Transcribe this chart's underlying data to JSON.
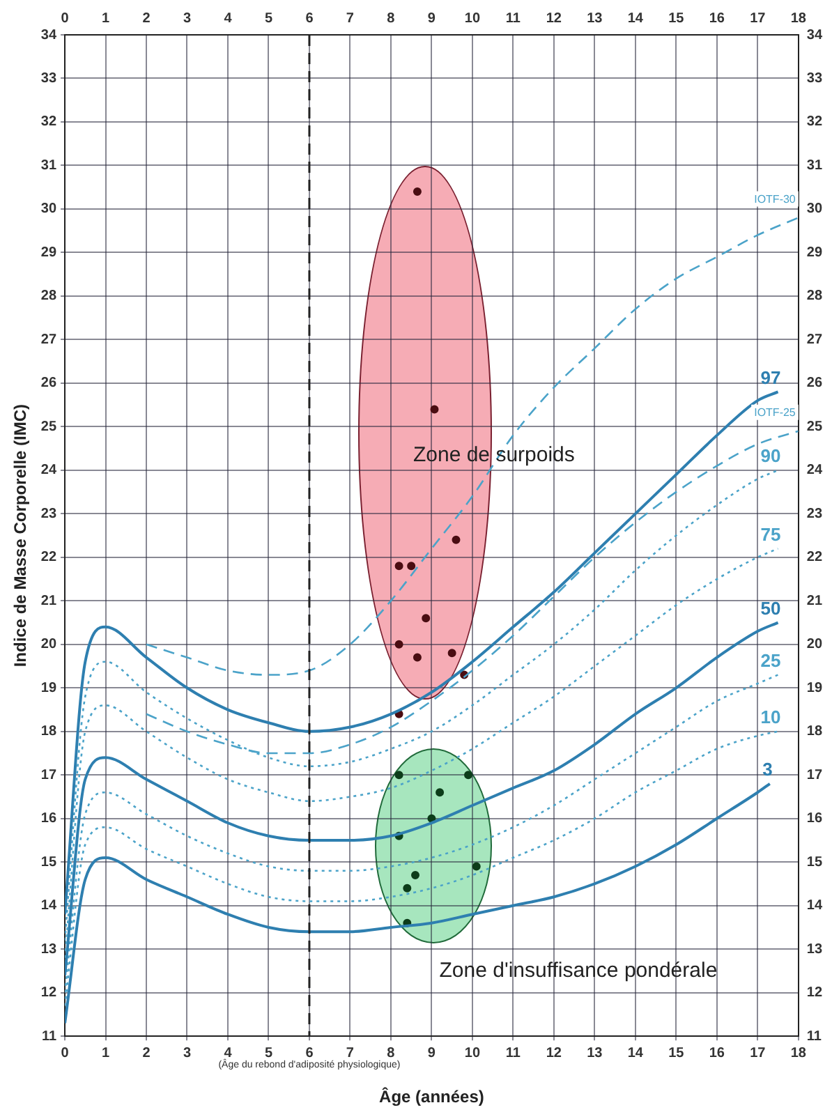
{
  "chart_data": {
    "type": "line",
    "xlabel": "Âge (années)",
    "ylabel": "Indice de Masse Corporelle (IMC)",
    "xlim": [
      0,
      18
    ],
    "xticks": [
      0,
      1,
      2,
      3,
      4,
      5,
      6,
      7,
      8,
      9,
      10,
      11,
      12,
      13,
      14,
      15,
      16,
      17,
      18
    ],
    "x2lim": [
      0,
      18
    ],
    "x2ticks": [
      0,
      1,
      2,
      3,
      4,
      5,
      6,
      7,
      8,
      9,
      10,
      11,
      12,
      13,
      14,
      15,
      16,
      17,
      18
    ],
    "ylim": [
      11,
      34
    ],
    "yticks": [
      11,
      12,
      13,
      14,
      15,
      16,
      17,
      18,
      19,
      20,
      21,
      22,
      23,
      24,
      25,
      26,
      27,
      28,
      29,
      30,
      31,
      32,
      33,
      34
    ],
    "y2lim": [
      11,
      34
    ],
    "y2ticks": [
      11,
      12,
      13,
      14,
      15,
      16,
      17,
      18,
      19,
      20,
      21,
      22,
      23,
      24,
      25,
      26,
      27,
      28,
      29,
      30,
      31,
      32,
      33,
      34
    ],
    "grid": true,
    "legend": false,
    "marker": "none",
    "series": [
      {
        "name": "97",
        "color": "#2e7fb0",
        "line_style": "solid",
        "x": [
          0,
          0.5,
          1,
          2,
          3,
          4,
          5,
          6,
          7,
          8,
          9,
          10,
          11,
          12,
          13,
          14,
          15,
          16,
          17,
          17.5
        ],
        "values": [
          13.8,
          19.6,
          20.4,
          19.7,
          19.0,
          18.5,
          18.2,
          18.0,
          18.1,
          18.4,
          18.9,
          19.6,
          20.4,
          21.2,
          22.1,
          23.0,
          23.9,
          24.8,
          25.6,
          25.8
        ]
      },
      {
        "name": "90",
        "color": "#4ba3c9",
        "line_style": "dotted",
        "x": [
          0,
          0.5,
          1,
          2,
          3,
          4,
          5,
          6,
          7,
          8,
          9,
          10,
          11,
          12,
          13,
          14,
          15,
          16,
          17,
          17.5
        ],
        "values": [
          13.2,
          18.8,
          19.6,
          18.9,
          18.3,
          17.8,
          17.4,
          17.2,
          17.3,
          17.6,
          18.0,
          18.6,
          19.3,
          20.0,
          20.8,
          21.7,
          22.5,
          23.2,
          23.8,
          24.0
        ]
      },
      {
        "name": "75",
        "color": "#4ba3c9",
        "line_style": "dotted",
        "x": [
          0,
          0.5,
          1,
          2,
          3,
          4,
          5,
          6,
          7,
          8,
          9,
          10,
          11,
          12,
          13,
          14,
          15,
          16,
          17,
          17.5
        ],
        "values": [
          12.8,
          18.0,
          18.6,
          18.0,
          17.4,
          16.9,
          16.6,
          16.4,
          16.5,
          16.7,
          17.1,
          17.6,
          18.2,
          18.8,
          19.5,
          20.2,
          20.9,
          21.5,
          22.0,
          22.2
        ]
      },
      {
        "name": "50",
        "color": "#2e7fb0",
        "line_style": "solid",
        "x": [
          0,
          0.5,
          1,
          2,
          3,
          4,
          5,
          6,
          7,
          8,
          9,
          10,
          11,
          12,
          13,
          14,
          15,
          16,
          17,
          17.5
        ],
        "values": [
          12.4,
          16.9,
          17.4,
          16.9,
          16.4,
          15.9,
          15.6,
          15.5,
          15.5,
          15.6,
          15.9,
          16.3,
          16.7,
          17.1,
          17.7,
          18.4,
          19.0,
          19.7,
          20.3,
          20.5
        ]
      },
      {
        "name": "25",
        "color": "#4ba3c9",
        "line_style": "dotted",
        "x": [
          0,
          0.5,
          1,
          2,
          3,
          4,
          5,
          6,
          7,
          8,
          9,
          10,
          11,
          12,
          13,
          14,
          15,
          16,
          17,
          17.5
        ],
        "values": [
          12.0,
          16.1,
          16.6,
          16.1,
          15.6,
          15.2,
          14.9,
          14.8,
          14.8,
          14.9,
          15.1,
          15.4,
          15.8,
          16.3,
          16.9,
          17.5,
          18.1,
          18.7,
          19.1,
          19.3
        ]
      },
      {
        "name": "10",
        "color": "#4ba3c9",
        "line_style": "dotted",
        "x": [
          0,
          0.5,
          1,
          2,
          3,
          4,
          5,
          6,
          7,
          8,
          9,
          10,
          11,
          12,
          13,
          14,
          15,
          16,
          17,
          17.5
        ],
        "values": [
          11.7,
          15.4,
          15.8,
          15.3,
          14.9,
          14.5,
          14.2,
          14.1,
          14.1,
          14.2,
          14.4,
          14.7,
          15.1,
          15.5,
          16.0,
          16.6,
          17.1,
          17.6,
          17.9,
          18.0
        ]
      },
      {
        "name": "3",
        "color": "#2e7fb0",
        "line_style": "solid",
        "x": [
          0,
          0.5,
          1,
          2,
          3,
          4,
          5,
          6,
          7,
          8,
          9,
          10,
          11,
          12,
          13,
          14,
          15,
          16,
          17,
          17.3
        ],
        "values": [
          11.3,
          14.6,
          15.1,
          14.6,
          14.2,
          13.8,
          13.5,
          13.4,
          13.4,
          13.5,
          13.6,
          13.8,
          14.0,
          14.2,
          14.5,
          14.9,
          15.4,
          16.0,
          16.6,
          16.8
        ]
      },
      {
        "name": "IOTF-30",
        "color": "#4ba3c9",
        "line_style": "dashed",
        "x": [
          2,
          3,
          4,
          5,
          6,
          7,
          8,
          9,
          10,
          11,
          12,
          13,
          14,
          15,
          16,
          17,
          18
        ],
        "values": [
          20.0,
          19.7,
          19.4,
          19.3,
          19.4,
          20.0,
          21.0,
          22.2,
          23.4,
          24.8,
          25.9,
          26.8,
          27.7,
          28.4,
          28.9,
          29.4,
          29.8
        ]
      },
      {
        "name": "IOTF-25",
        "color": "#4ba3c9",
        "line_style": "dashed",
        "x": [
          2,
          3,
          4,
          5,
          6,
          7,
          8,
          9,
          10,
          11,
          12,
          13,
          14,
          15,
          16,
          17,
          18
        ],
        "values": [
          18.4,
          18.0,
          17.7,
          17.5,
          17.5,
          17.7,
          18.1,
          18.7,
          19.4,
          20.2,
          21.1,
          22.0,
          22.8,
          23.5,
          24.1,
          24.6,
          24.9
        ]
      },
      {
        "type": "scatter",
        "color": "#4a0d12",
        "marker": "circle",
        "x": [
          8.65,
          9.07,
          9.6,
          8.2,
          8.5,
          8.86,
          8.2,
          8.65,
          9.5,
          9.8,
          8.2
        ],
        "values": [
          30.4,
          25.4,
          22.4,
          21.8,
          21.8,
          20.6,
          20.0,
          19.7,
          19.8,
          19.3,
          18.4
        ]
      },
      {
        "type": "scatter",
        "color": "#0d3d1a",
        "marker": "circle",
        "x": [
          8.2,
          9.9,
          9.2,
          9.0,
          8.2,
          10.1,
          8.6,
          8.4,
          8.4
        ],
        "values": [
          17.0,
          17.0,
          16.6,
          16.0,
          15.6,
          14.9,
          14.7,
          14.4,
          13.6
        ]
      }
    ],
    "ref_lines": [
      {
        "axis": "x",
        "value": 6,
        "label": "(Âge du rebond d'adiposité physiologique)",
        "color": "#222222",
        "line_style": "dashed"
      }
    ],
    "annotations": [
      "Zone de surpoids",
      "Zone d'insuffisance pondérale"
    ]
  }
}
